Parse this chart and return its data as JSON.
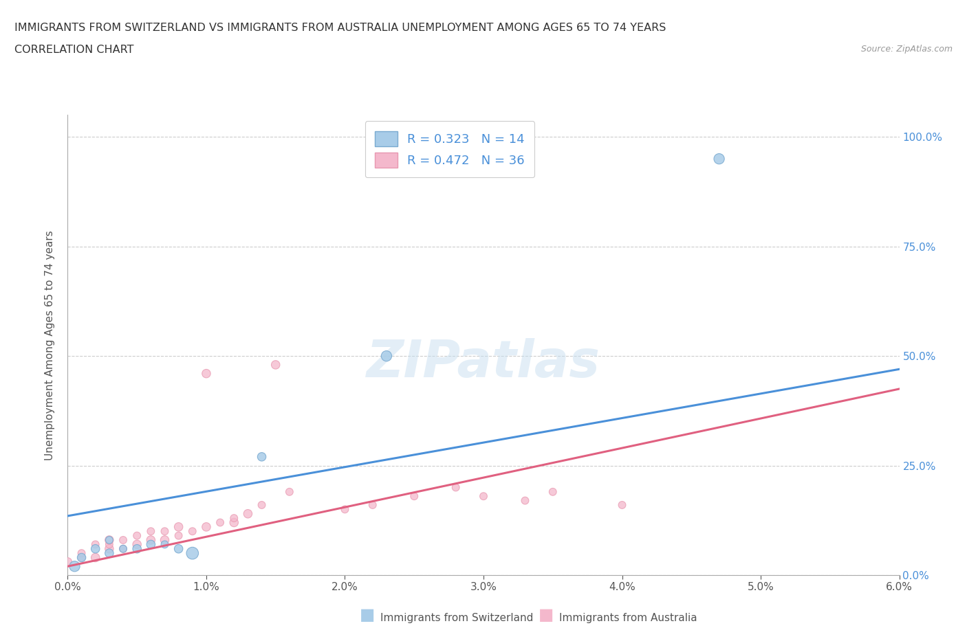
{
  "title_line1": "IMMIGRANTS FROM SWITZERLAND VS IMMIGRANTS FROM AUSTRALIA UNEMPLOYMENT AMONG AGES 65 TO 74 YEARS",
  "title_line2": "CORRELATION CHART",
  "source_text": "Source: ZipAtlas.com",
  "xlabel_ticks": [
    "0.0%",
    "1.0%",
    "2.0%",
    "3.0%",
    "4.0%",
    "5.0%",
    "6.0%"
  ],
  "xlim": [
    0.0,
    0.06
  ],
  "ylim": [
    0.0,
    1.05
  ],
  "ylabel": "Unemployment Among Ages 65 to 74 years",
  "right_ytick_labels": [
    "0.0%",
    "25.0%",
    "50.0%",
    "75.0%",
    "100.0%"
  ],
  "right_ytick_values": [
    0.0,
    0.25,
    0.5,
    0.75,
    1.0
  ],
  "blue_line_color": "#4a90d9",
  "pink_line_color": "#e06080",
  "blue_scatter_face": "#a8cce8",
  "pink_scatter_face": "#f4b8cc",
  "blue_scatter_edge": "#7aaad0",
  "pink_scatter_edge": "#e898b0",
  "r_switzerland": 0.323,
  "n_switzerland": 14,
  "r_australia": 0.472,
  "n_australia": 36,
  "watermark": "ZIPatlas",
  "legend_label_swiss": "Immigrants from Switzerland",
  "legend_label_aus": "Immigrants from Australia",
  "blue_line_y0": 0.135,
  "blue_line_y1": 0.47,
  "pink_line_y0": 0.02,
  "pink_line_y1": 0.425,
  "switzerland_x": [
    0.0005,
    0.001,
    0.002,
    0.003,
    0.003,
    0.004,
    0.005,
    0.006,
    0.007,
    0.008,
    0.009,
    0.014,
    0.023,
    0.047
  ],
  "switzerland_y": [
    0.02,
    0.04,
    0.06,
    0.08,
    0.05,
    0.06,
    0.06,
    0.07,
    0.07,
    0.06,
    0.05,
    0.27,
    0.5,
    0.95
  ],
  "switzerland_size": [
    120,
    80,
    80,
    60,
    80,
    60,
    80,
    80,
    60,
    80,
    160,
    80,
    120,
    120
  ],
  "australia_x": [
    0.0,
    0.001,
    0.001,
    0.002,
    0.002,
    0.003,
    0.003,
    0.003,
    0.004,
    0.004,
    0.005,
    0.005,
    0.006,
    0.006,
    0.007,
    0.007,
    0.008,
    0.008,
    0.009,
    0.01,
    0.01,
    0.011,
    0.012,
    0.012,
    0.013,
    0.014,
    0.015,
    0.016,
    0.02,
    0.022,
    0.025,
    0.028,
    0.03,
    0.033,
    0.035,
    0.04
  ],
  "australia_y": [
    0.03,
    0.04,
    0.05,
    0.04,
    0.07,
    0.06,
    0.07,
    0.08,
    0.06,
    0.08,
    0.07,
    0.09,
    0.08,
    0.1,
    0.08,
    0.1,
    0.09,
    0.11,
    0.1,
    0.11,
    0.46,
    0.12,
    0.12,
    0.13,
    0.14,
    0.16,
    0.48,
    0.19,
    0.15,
    0.16,
    0.18,
    0.2,
    0.18,
    0.17,
    0.19,
    0.16
  ],
  "australia_size": [
    80,
    60,
    60,
    80,
    60,
    80,
    60,
    80,
    60,
    60,
    80,
    60,
    80,
    60,
    80,
    60,
    60,
    80,
    60,
    80,
    80,
    60,
    80,
    60,
    80,
    60,
    80,
    60,
    60,
    60,
    60,
    60,
    60,
    60,
    60,
    60
  ]
}
